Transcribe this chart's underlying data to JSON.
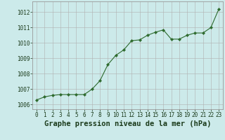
{
  "x": [
    0,
    1,
    2,
    3,
    4,
    5,
    6,
    7,
    8,
    9,
    10,
    11,
    12,
    13,
    14,
    15,
    16,
    17,
    18,
    19,
    20,
    21,
    22,
    23
  ],
  "y": [
    1006.3,
    1006.5,
    1006.6,
    1006.65,
    1006.65,
    1006.65,
    1006.65,
    1007.0,
    1007.55,
    1008.6,
    1009.2,
    1009.55,
    1010.15,
    1010.2,
    1010.5,
    1010.7,
    1010.85,
    1010.25,
    1010.25,
    1010.5,
    1010.65,
    1010.65,
    1011.0,
    1012.2
  ],
  "xlim": [
    -0.5,
    23.5
  ],
  "ylim": [
    1005.7,
    1012.7
  ],
  "yticks": [
    1006,
    1007,
    1008,
    1009,
    1010,
    1011,
    1012
  ],
  "xticks": [
    0,
    1,
    2,
    3,
    4,
    5,
    6,
    7,
    8,
    9,
    10,
    11,
    12,
    13,
    14,
    15,
    16,
    17,
    18,
    19,
    20,
    21,
    22,
    23
  ],
  "xlabel": "Graphe pression niveau de la mer (hPa)",
  "line_color": "#2d6a2d",
  "marker_color": "#2d6a2d",
  "bg_color": "#cceaea",
  "grid_color": "#b0b0b0",
  "tick_label_color": "#1a3a1a",
  "xlabel_color": "#1a3a1a",
  "tick_fontsize": 5.5,
  "xlabel_fontsize": 7.5
}
